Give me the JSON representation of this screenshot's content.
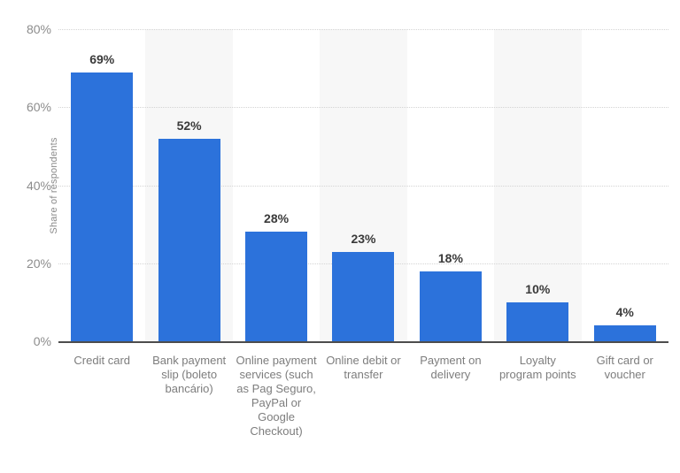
{
  "chart_data": {
    "type": "bar",
    "title": "",
    "xlabel": "",
    "ylabel": "Share of respondents",
    "ylim": [
      0,
      80
    ],
    "yticks": [
      0,
      20,
      40,
      60,
      80
    ],
    "ytick_labels": [
      "0%",
      "20%",
      "40%",
      "60%",
      "80%"
    ],
    "grid": "horizontal-dotted",
    "legend": "none",
    "categories": [
      "Credit card",
      "Bank payment slip (boleto bancário)",
      "Online payment services (such as Pag Seguro, PayPal or Google Checkout)",
      "Online debit or transfer",
      "Payment on delivery",
      "Loyalty program points",
      "Gift card or voucher"
    ],
    "values": [
      69,
      52,
      28,
      23,
      18,
      10,
      4
    ],
    "value_labels": [
      "69%",
      "52%",
      "28%",
      "23%",
      "18%",
      "10%",
      "4%"
    ],
    "colors": {
      "bar": "#2C72DB",
      "band": "#f7f7f7",
      "gridline": "#d4d4d4",
      "axis_line": "#4d4d4d",
      "tick_text": "#8c8c8c",
      "category_text": "#7d7d7d",
      "value_text": "#3a3a3a",
      "background": "#ffffff"
    },
    "banded_category_indexes": [
      1,
      3,
      5
    ]
  }
}
